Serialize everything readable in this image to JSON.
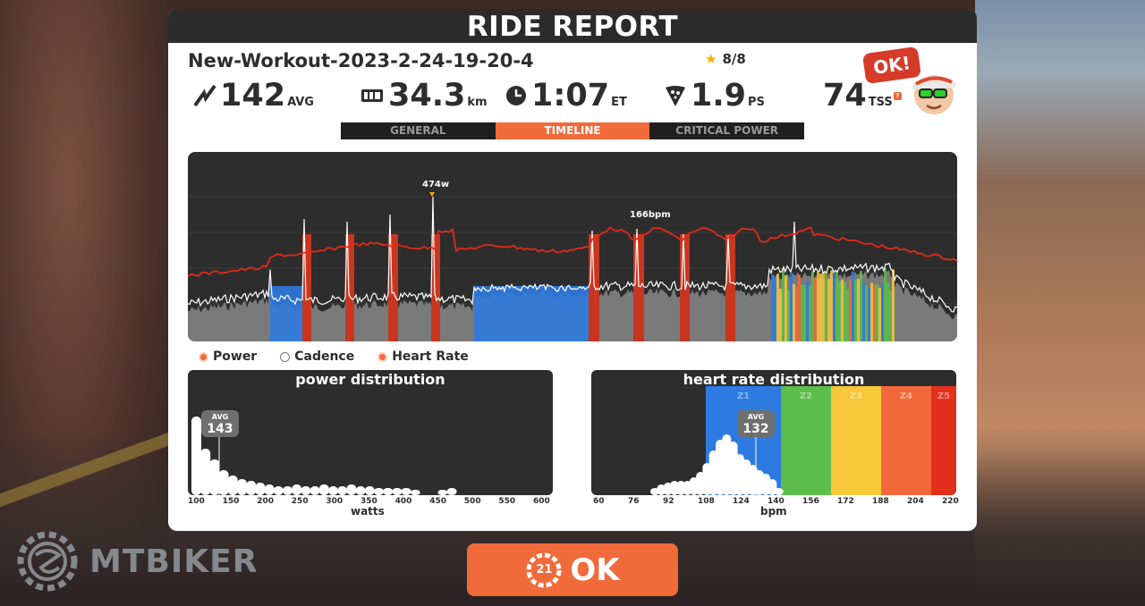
{
  "header": {
    "title": "RIDE REPORT"
  },
  "workout": {
    "name": "New-Workout-2023-2-24-19-20-4",
    "stars": "8/8"
  },
  "stats": {
    "power": {
      "value": "142",
      "unit": "AVG"
    },
    "distance": {
      "value": "34.3",
      "unit": "km"
    },
    "time": {
      "value": "1:07",
      "unit": "ET"
    },
    "pizza": {
      "value": "1.9",
      "unit": "PS"
    },
    "tss": {
      "value": "74",
      "unit": "TSS",
      "help": "?"
    }
  },
  "badge": {
    "ok_bubble": "OK!"
  },
  "tabs": [
    {
      "label": "GENERAL",
      "active": false
    },
    {
      "label": "TIMELINE",
      "active": true
    },
    {
      "label": "CRITICAL POWER",
      "active": false
    }
  ],
  "timeline": {
    "peak_power_label": "474w",
    "peak_hr_label": "166bpm"
  },
  "legend": {
    "power": "Power",
    "cadence": "Cadence",
    "heart_rate": "Heart Rate"
  },
  "power_distribution": {
    "title": "power distribution",
    "avg_label": "AVG",
    "avg_value": "143",
    "axis_title": "watts",
    "ticks": [
      "100",
      "150",
      "200",
      "250",
      "300",
      "350",
      "400",
      "450",
      "500",
      "550",
      "600"
    ]
  },
  "hr_distribution": {
    "title": "heart rate distribution",
    "avg_label": "AVG",
    "avg_value": "132",
    "axis_title": "bpm",
    "zones": [
      "Z1",
      "Z2",
      "Z3",
      "Z4",
      "Z5"
    ],
    "ticks": [
      "60",
      "76",
      "92",
      "108",
      "124",
      "140",
      "156",
      "172",
      "188",
      "204",
      "220"
    ]
  },
  "colors": {
    "accent": "#f06a3a",
    "z1": "#2d7be0",
    "z2": "#5cbd4a",
    "z3": "#f7c73c",
    "z4": "#f2683a",
    "z5": "#e2301c",
    "hr_line": "#e02a1a"
  },
  "footer": {
    "watermark": "MTBIKER",
    "countdown": "21",
    "ok_label": "OK"
  }
}
